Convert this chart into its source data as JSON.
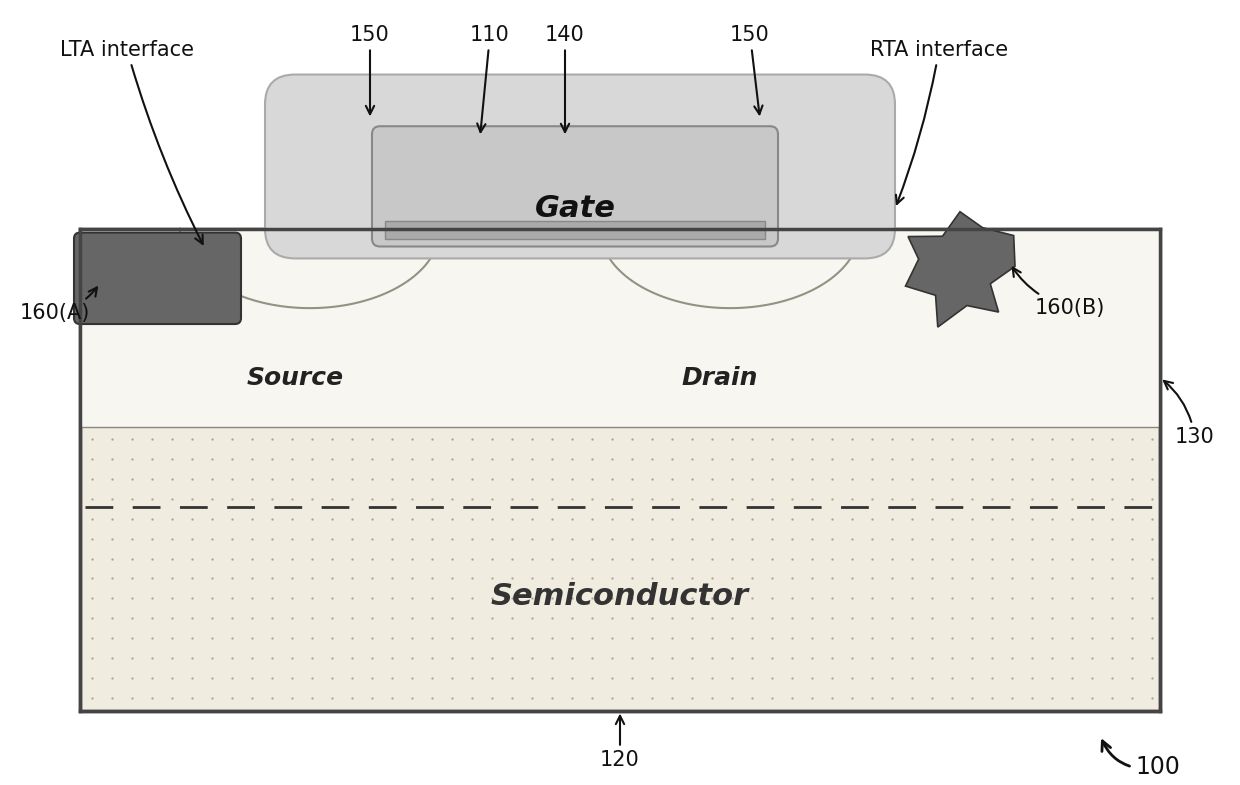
{
  "bg_color": "#ffffff",
  "semi_color": "#f0ece0",
  "semi_edge": "#444444",
  "upper_color": "#ffffff",
  "gate_inner_color": "#d8d8d8",
  "gate_outer_color": "#c8c8c8",
  "gate_encap_color": "#d0d0d0",
  "contact_color": "#666666",
  "contact_edge": "#333333",
  "source_drain_color": "#f5f2ea",
  "label_gate": "Gate",
  "label_source": "Source",
  "label_drain": "Drain",
  "label_semiconductor": "Semiconductor",
  "label_110": "110",
  "label_120": "120",
  "label_130": "130",
  "label_140": "140",
  "label_150_left": "150",
  "label_150_right": "150",
  "label_160A": "160(A)",
  "label_160B": "160(B)",
  "label_LTA": "LTA interface",
  "label_RTA": "RTA interface",
  "label_100": "100"
}
